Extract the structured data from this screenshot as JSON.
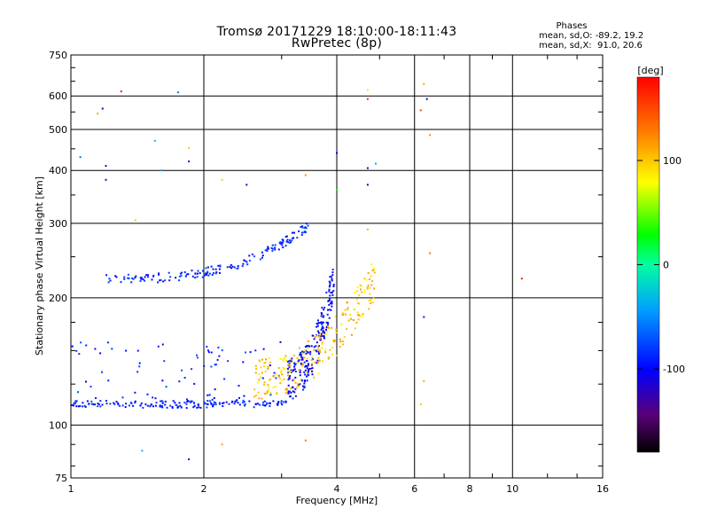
{
  "header": {
    "title_line1": "Tromsø 20171229 18:10:00-18:11:43",
    "title_line2": "RwPretec (8p)",
    "stats_heading": "Phases",
    "stats_o": "mean, sd,O: -89.2, 19.2",
    "stats_x": "mean, sd,X:  91.0, 20.6"
  },
  "chart_data": {
    "type": "scatter",
    "xscale": "log",
    "yscale": "log",
    "xlabel": "Frequency [MHz]",
    "ylabel": "Stationary phase Virtual Height [km]",
    "xlim": [
      1,
      16
    ],
    "ylim": [
      75,
      750
    ],
    "xticks": [
      1,
      2,
      4,
      6,
      8,
      10,
      16
    ],
    "xtick_labels": [
      "1",
      "2",
      "4",
      "6",
      "8",
      "10",
      "16"
    ],
    "yticks": [
      75,
      100,
      200,
      300,
      400,
      500,
      600,
      750
    ],
    "ytick_labels": [
      "75",
      "100",
      "200",
      "300",
      "400",
      "500",
      "600",
      "750"
    ],
    "grid": true,
    "colorbar": {
      "label": "[deg]",
      "range": [
        -180,
        180
      ],
      "ticks": [
        100,
        0,
        -100
      ],
      "tick_labels": [
        "100",
        "0",
        "-100"
      ]
    },
    "traces": [
      {
        "name": "E-region O trace",
        "f_start": 1.0,
        "f_end": 3.1,
        "h_start": 112,
        "h_end": 115,
        "phase": -90
      },
      {
        "name": "F2 O trace (lower)",
        "f_start": 3.1,
        "f_end": 3.95,
        "h_start": 115,
        "h_end": 200,
        "phase": -100
      },
      {
        "name": "F2 X trace",
        "f_start": 2.6,
        "f_end": 4.9,
        "h_start": 115,
        "h_end": 200,
        "phase": 100
      },
      {
        "name": "Upper F trace",
        "f_start": 1.2,
        "f_end": 3.5,
        "h_start": 222,
        "h_end": 300,
        "phase": -90
      }
    ],
    "scattered_points": [
      {
        "f": 1.3,
        "h": 615,
        "phase": 170
      },
      {
        "f": 1.75,
        "h": 612,
        "phase": -60
      },
      {
        "f": 1.55,
        "h": 470,
        "phase": -30
      },
      {
        "f": 1.85,
        "h": 452,
        "phase": 100
      },
      {
        "f": 1.05,
        "h": 430,
        "phase": -60
      },
      {
        "f": 1.18,
        "h": 560,
        "phase": -110
      },
      {
        "f": 1.15,
        "h": 545,
        "phase": 110
      },
      {
        "f": 3.4,
        "h": 390,
        "phase": 120
      },
      {
        "f": 4.7,
        "h": 620,
        "phase": 90
      },
      {
        "f": 4.7,
        "h": 590,
        "phase": 160
      },
      {
        "f": 6.3,
        "h": 640,
        "phase": 110
      },
      {
        "f": 6.2,
        "h": 555,
        "phase": 150
      },
      {
        "f": 6.4,
        "h": 590,
        "phase": -110
      },
      {
        "f": 6.5,
        "h": 485,
        "phase": 120
      },
      {
        "f": 6.5,
        "h": 255,
        "phase": 130
      },
      {
        "f": 10.5,
        "h": 222,
        "phase": 170
      },
      {
        "f": 6.3,
        "h": 180,
        "phase": -90
      },
      {
        "f": 6.3,
        "h": 127,
        "phase": 110
      },
      {
        "f": 6.2,
        "h": 112,
        "phase": 100
      },
      {
        "f": 3.4,
        "h": 92,
        "phase": 130
      },
      {
        "f": 2.2,
        "h": 90,
        "phase": 110
      },
      {
        "f": 1.45,
        "h": 87,
        "phase": -30
      },
      {
        "f": 1.85,
        "h": 83,
        "phase": -100
      },
      {
        "f": 4.0,
        "h": 440,
        "phase": -100
      },
      {
        "f": 4.0,
        "h": 360,
        "phase": 30
      },
      {
        "f": 4.7,
        "h": 405,
        "phase": -110
      },
      {
        "f": 4.9,
        "h": 415,
        "phase": -40
      },
      {
        "f": 4.7,
        "h": 370,
        "phase": -100
      },
      {
        "f": 4.7,
        "h": 290,
        "phase": 110
      },
      {
        "f": 2.5,
        "h": 370,
        "phase": -110
      },
      {
        "f": 2.2,
        "h": 380,
        "phase": 60
      },
      {
        "f": 1.6,
        "h": 400,
        "phase": -40
      },
      {
        "f": 1.85,
        "h": 420,
        "phase": -100
      },
      {
        "f": 1.2,
        "h": 410,
        "phase": -110
      },
      {
        "f": 1.2,
        "h": 380,
        "phase": -110
      },
      {
        "f": 1.4,
        "h": 305,
        "phase": 100
      }
    ]
  }
}
